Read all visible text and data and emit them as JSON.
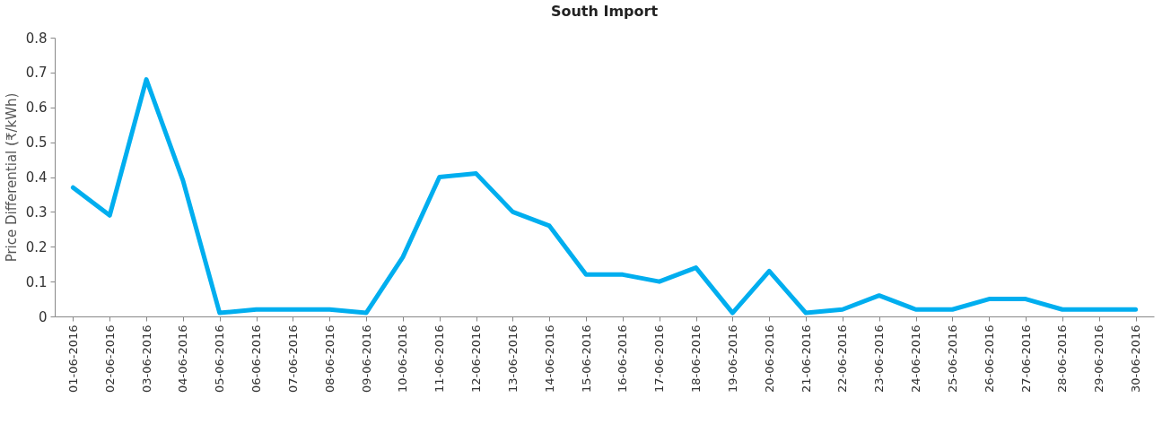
{
  "chart_data": {
    "type": "line",
    "title": "South Import",
    "ylabel": "Price Differential (₹/kWh)",
    "categories": [
      "01-06-2016",
      "02-06-2016",
      "03-06-2016",
      "04-06-2016",
      "05-06-2016",
      "06-06-2016",
      "07-06-2016",
      "08-06-2016",
      "09-06-2016",
      "10-06-2016",
      "11-06-2016",
      "12-06-2016",
      "13-06-2016",
      "14-06-2016",
      "15-06-2016",
      "16-06-2016",
      "17-06-2016",
      "18-06-2016",
      "19-06-2016",
      "20-06-2016",
      "21-06-2016",
      "22-06-2016",
      "23-06-2016",
      "24-06-2016",
      "25-06-2016",
      "26-06-2016",
      "27-06-2016",
      "28-06-2016",
      "29-06-2016",
      "30-06-2016"
    ],
    "series": [
      {
        "color": "#00aeef",
        "values": [
          0.37,
          0.29,
          0.68,
          0.39,
          0.01,
          0.02,
          0.02,
          0.02,
          0.01,
          0.17,
          0.4,
          0.41,
          0.3,
          0.26,
          0.12,
          0.12,
          0.1,
          0.14,
          0.01,
          0.13,
          0.01,
          0.02,
          0.06,
          0.02,
          0.02,
          0.05,
          0.05,
          0.02,
          0.02,
          0.02
        ]
      }
    ],
    "ylim": [
      0,
      0.8
    ],
    "yticks": [
      0,
      0.1,
      0.2,
      0.3,
      0.4,
      0.5,
      0.6,
      0.7,
      0.8
    ],
    "grid": false,
    "line_style": "solid",
    "marker": "none"
  }
}
